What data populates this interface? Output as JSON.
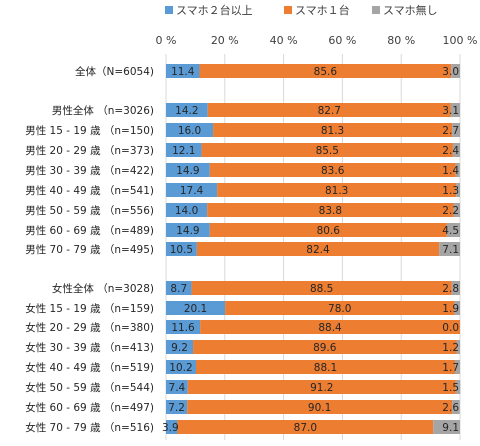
{
  "chart_data": {
    "type": "bar",
    "orientation": "horizontal",
    "stacked": "percent",
    "xlim": [
      0,
      100
    ],
    "grid": true,
    "legend_position": "top",
    "tick_labels": [
      "0 %",
      "20 %",
      "40 %",
      "60 %",
      "80 %",
      "100 %"
    ],
    "tick_values": [
      0,
      20,
      40,
      60,
      80,
      100
    ],
    "categories": [
      "全体（N=6054)",
      "男性全体 （n=3026)",
      "男性 15 - 19 歳 （n=150)",
      "男性 20 - 29 歳 （n=373)",
      "男性 30 - 39 歳 （n=422)",
      "男性 40 - 49 歳 （n=541)",
      "男性 50 - 59 歳 （n=556)",
      "男性 60 - 69 歳 （n=489)",
      "男性 70 - 79 歳 （n=495)",
      "女性全体 （n=3028)",
      "女性 15 - 19 歳 （n=159)",
      "女性 20 - 29 歳 （n=380)",
      "女性 30 - 39 歳 （n=413)",
      "女性 40 - 49 歳 （n=519)",
      "女性 50 - 59 歳 （n=544)",
      "女性 60 - 69 歳 （n=497)",
      "女性 70 - 79 歳 （n=516)"
    ],
    "series": [
      {
        "name": "スマホ２台以上",
        "color": "#5b9bd5",
        "values": [
          11.4,
          14.2,
          16.0,
          12.1,
          14.9,
          17.4,
          14.0,
          14.9,
          10.5,
          8.7,
          20.1,
          11.6,
          9.2,
          10.2,
          7.4,
          7.2,
          3.9
        ]
      },
      {
        "name": "スマホ１台",
        "color": "#ed7d31",
        "values": [
          85.6,
          82.7,
          81.3,
          85.5,
          83.6,
          81.3,
          83.8,
          80.6,
          82.4,
          88.5,
          78.0,
          88.4,
          89.6,
          88.1,
          91.2,
          90.1,
          87.0
        ]
      },
      {
        "name": "スマホ無し",
        "color": "#a5a5a5",
        "values": [
          3.0,
          3.1,
          2.7,
          2.4,
          1.4,
          1.3,
          2.2,
          4.5,
          7.1,
          2.8,
          1.9,
          0.0,
          1.2,
          1.7,
          1.5,
          2.6,
          9.1
        ]
      }
    ]
  }
}
